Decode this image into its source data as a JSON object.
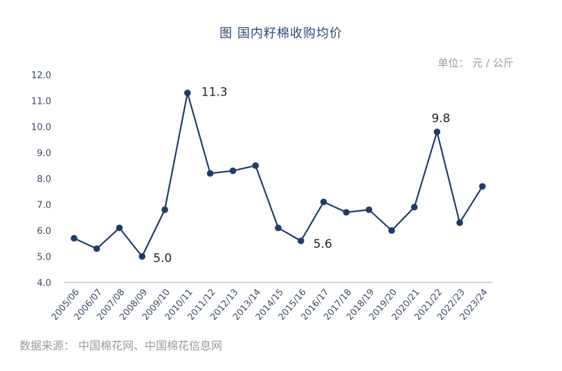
{
  "title": "图 国内籽棉收购均价",
  "unit": "单位： 元 / 公斤",
  "source": "数据来源： 中国棉花网、中国棉花信息网",
  "colors": {
    "line": "#1f3c68",
    "marker": "#1f3c68",
    "axis": "#b8bcc4"
  },
  "chart_data": {
    "type": "line",
    "title": "图 国内籽棉收购均价",
    "xlabel": "",
    "ylabel": "",
    "ylim": [
      4.0,
      12.0
    ],
    "yticks": [
      4.0,
      5.0,
      6.0,
      7.0,
      8.0,
      9.0,
      10.0,
      11.0,
      12.0
    ],
    "yticks_labels": [
      "4.0",
      "5.0",
      "6.0",
      "7.0",
      "8.0",
      "9.0",
      "10.0",
      "11.0",
      "12.0"
    ],
    "grid": false,
    "categories": [
      "2005/06",
      "2006/07",
      "2007/08",
      "2008/09",
      "2009/10",
      "2010/11",
      "2011/12",
      "2012/13",
      "2013/14",
      "2014/15",
      "2015/16",
      "2016/17",
      "2017/18",
      "2018/19",
      "2019/20",
      "2020/21",
      "2021/22",
      "2022/23",
      "2023/24"
    ],
    "series": [
      {
        "values": [
          5.7,
          5.3,
          6.1,
          5.0,
          6.8,
          11.3,
          8.2,
          8.3,
          8.5,
          6.1,
          5.6,
          7.1,
          6.7,
          6.8,
          6.0,
          6.9,
          9.8,
          6.3,
          7.7
        ]
      }
    ],
    "annotations": [
      {
        "index": 3,
        "text": "5.0"
      },
      {
        "index": 5,
        "text": "11.3"
      },
      {
        "index": 10,
        "text": "5.6"
      },
      {
        "index": 16,
        "text": "9.8"
      }
    ]
  }
}
